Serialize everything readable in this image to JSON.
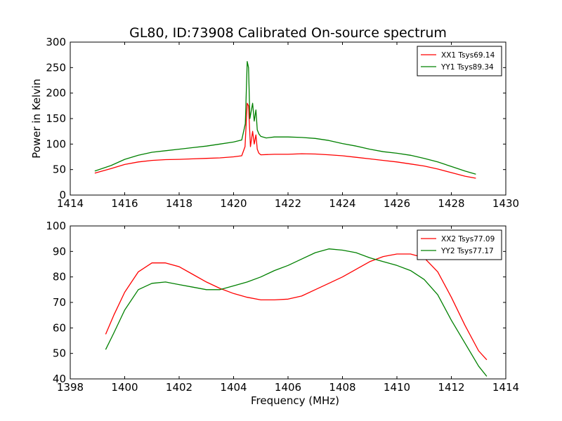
{
  "figure": {
    "title": "GL80, ID:73908 Calibrated On-source spectrum"
  },
  "chart_data": [
    {
      "type": "line",
      "title": "GL80, ID:73908 Calibrated On-source spectrum",
      "xlabel": "",
      "ylabel": "Power in Kelvin",
      "xlim": [
        1414,
        1430
      ],
      "ylim": [
        0,
        300
      ],
      "xticks": [
        1414,
        1416,
        1418,
        1420,
        1422,
        1424,
        1426,
        1428,
        1430
      ],
      "yticks": [
        0,
        50,
        100,
        150,
        200,
        250,
        300
      ],
      "grid": false,
      "legend_position": "top-right",
      "series": [
        {
          "name": "XX1 Tsys69.14",
          "color": "#ff0000",
          "x": [
            1414.9,
            1415.5,
            1416.0,
            1416.5,
            1417.0,
            1417.5,
            1418.0,
            1418.5,
            1419.0,
            1419.5,
            1420.0,
            1420.3,
            1420.42,
            1420.5,
            1420.55,
            1420.62,
            1420.7,
            1420.76,
            1420.82,
            1420.87,
            1420.93,
            1421.0,
            1421.5,
            1422.0,
            1422.5,
            1423.0,
            1423.5,
            1424.0,
            1424.5,
            1425.0,
            1425.5,
            1426.0,
            1426.5,
            1427.0,
            1427.5,
            1428.0,
            1428.5,
            1428.9
          ],
          "values": [
            43,
            52,
            60,
            65,
            68,
            69.5,
            70,
            71,
            72,
            73,
            75,
            77,
            95,
            180,
            175,
            95,
            125,
            100,
            118,
            90,
            82,
            79,
            80,
            80,
            81,
            80.5,
            79,
            77,
            74,
            71,
            68,
            65,
            61,
            57,
            51,
            44,
            37,
            33
          ]
        },
        {
          "name": "YY1 Tsys89.34",
          "color": "#008000",
          "x": [
            1414.9,
            1415.5,
            1416.0,
            1416.5,
            1417.0,
            1417.5,
            1418.0,
            1418.5,
            1419.0,
            1419.5,
            1420.0,
            1420.3,
            1420.43,
            1420.5,
            1420.55,
            1420.6,
            1420.7,
            1420.76,
            1420.82,
            1420.87,
            1420.93,
            1421.0,
            1421.2,
            1421.5,
            1422.0,
            1422.5,
            1423.0,
            1423.5,
            1424.0,
            1424.5,
            1425.0,
            1425.5,
            1426.0,
            1426.5,
            1427.0,
            1427.5,
            1428.0,
            1428.5,
            1428.9
          ],
          "values": [
            47,
            58,
            70,
            78,
            84,
            87,
            90,
            93,
            96,
            100,
            104,
            108,
            140,
            262,
            250,
            150,
            180,
            145,
            167,
            128,
            120,
            115,
            112,
            114,
            114,
            113,
            111,
            107,
            101,
            96,
            90,
            85,
            82,
            78,
            72,
            65,
            56,
            47,
            41
          ]
        }
      ]
    },
    {
      "type": "line",
      "title": "",
      "xlabel": "Frequency (MHz)",
      "ylabel": "",
      "xlim": [
        1398,
        1414
      ],
      "ylim": [
        40,
        100
      ],
      "xticks": [
        1398,
        1400,
        1402,
        1404,
        1406,
        1408,
        1410,
        1412,
        1414
      ],
      "yticks": [
        40,
        50,
        60,
        70,
        80,
        90,
        100
      ],
      "grid": false,
      "legend_position": "top-right",
      "series": [
        {
          "name": "XX2 Tsys77.09",
          "color": "#ff0000",
          "x": [
            1399.3,
            1399.6,
            1400.0,
            1400.5,
            1401.0,
            1401.5,
            1402.0,
            1402.5,
            1403.0,
            1403.5,
            1404.0,
            1404.5,
            1405.0,
            1405.5,
            1406.0,
            1406.5,
            1407.0,
            1407.5,
            1408.0,
            1408.5,
            1409.0,
            1409.5,
            1410.0,
            1410.5,
            1411.0,
            1411.5,
            1412.0,
            1412.5,
            1413.0,
            1413.3
          ],
          "values": [
            57.5,
            65,
            74,
            82,
            85.5,
            85.5,
            84,
            81,
            78,
            75.5,
            73.5,
            72,
            71,
            71,
            71.3,
            72.5,
            75,
            77.5,
            80,
            83,
            86,
            88,
            89,
            89,
            87.5,
            82,
            72,
            61,
            51,
            47.5
          ]
        },
        {
          "name": "YY2 Tsys77.17",
          "color": "#008000",
          "x": [
            1399.3,
            1399.6,
            1400.0,
            1400.5,
            1401.0,
            1401.5,
            1402.0,
            1402.5,
            1403.0,
            1403.5,
            1404.0,
            1404.5,
            1405.0,
            1405.5,
            1406.0,
            1406.5,
            1407.0,
            1407.5,
            1408.0,
            1408.5,
            1409.0,
            1409.5,
            1410.0,
            1410.5,
            1411.0,
            1411.5,
            1412.0,
            1412.5,
            1413.0,
            1413.3
          ],
          "values": [
            51.5,
            58,
            67,
            75,
            77.5,
            78,
            77,
            76,
            75,
            75,
            76.5,
            78,
            80,
            82.5,
            84.5,
            87,
            89.5,
            91,
            90.5,
            89.5,
            87.5,
            86,
            84.5,
            82.5,
            79,
            73,
            63,
            54,
            45,
            41
          ]
        }
      ]
    }
  ]
}
